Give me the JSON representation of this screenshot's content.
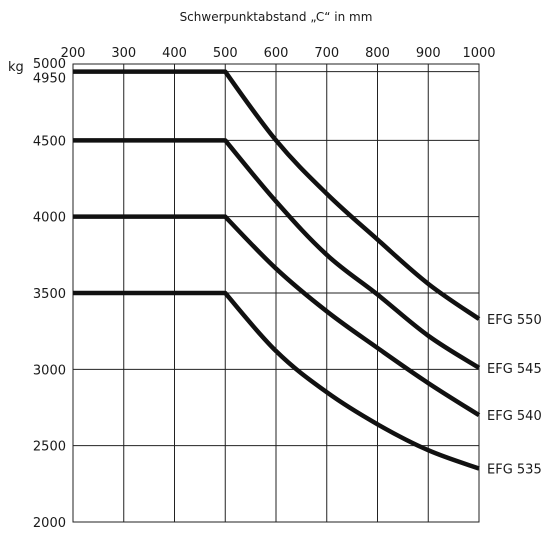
{
  "chart_data": {
    "type": "line",
    "title": "Schwerpunktabstand „C“ in mm",
    "ylabel": "kg",
    "x_ticks": [
      "200",
      "300",
      "400",
      "500",
      "600",
      "700",
      "800",
      "900",
      "1000"
    ],
    "y_ticks": [
      "2000",
      "2500",
      "3000",
      "3500",
      "4000",
      "4500",
      "4950",
      "5000"
    ],
    "xlim": [
      200,
      1000
    ],
    "ylim": [
      2000,
      5000
    ],
    "grid": true,
    "x": [
      200,
      300,
      400,
      500,
      600,
      700,
      800,
      900,
      1000
    ],
    "series": [
      {
        "name": "EFG 550",
        "values": [
          4950,
          4950,
          4950,
          4950,
          4500,
          4150,
          3850,
          3560,
          3330
        ]
      },
      {
        "name": "EFG 545",
        "values": [
          4500,
          4500,
          4500,
          4500,
          4100,
          3750,
          3490,
          3220,
          3010
        ]
      },
      {
        "name": "EFG 540",
        "values": [
          4000,
          4000,
          4000,
          4000,
          3660,
          3380,
          3140,
          2910,
          2700
        ]
      },
      {
        "name": "EFG 535",
        "values": [
          3500,
          3500,
          3500,
          3500,
          3120,
          2850,
          2640,
          2470,
          2350
        ]
      }
    ]
  }
}
